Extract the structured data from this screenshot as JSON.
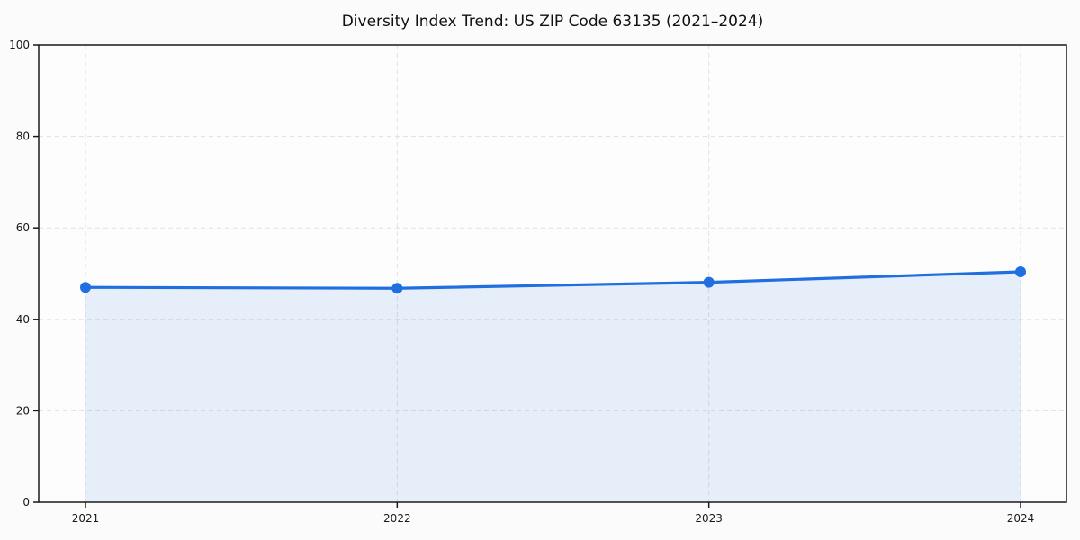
{
  "figure": {
    "background": "#fbfbfb",
    "plot_background": "#fdfdfd"
  },
  "chart_data": {
    "type": "area",
    "title": "Diversity Index Trend: US ZIP Code 63135 (2021–2024)",
    "x": [
      2021,
      2022,
      2023,
      2024
    ],
    "xtick_labels": [
      "2021",
      "2022",
      "2023",
      "2024"
    ],
    "series": [
      {
        "name": "Diversity Index",
        "values": [
          47.0,
          46.8,
          48.1,
          50.4
        ]
      }
    ],
    "xlabel": "",
    "ylabel": "",
    "ylim": [
      0,
      100
    ],
    "yticks": [
      0,
      20,
      40,
      60,
      80,
      100
    ],
    "grid": "dashed-both-axes",
    "legend": "none",
    "line_color": "#1f6fe0",
    "marker_color": "#1f6fe0",
    "fill_color": "rgba(31, 111, 224, 0.10)",
    "grid_color": "#e1e1e1",
    "spine_color": "#1a1a1a",
    "text_color": "#111111"
  }
}
